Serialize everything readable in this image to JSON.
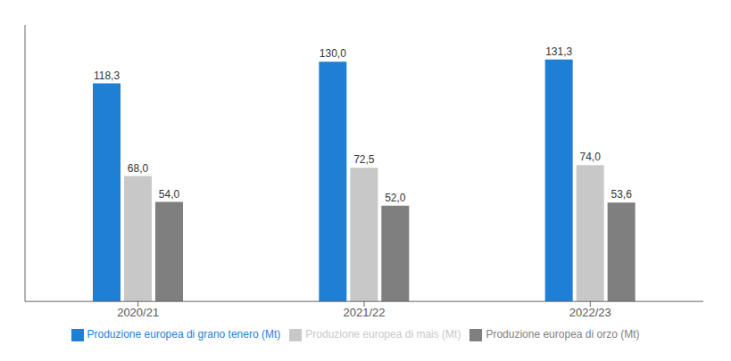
{
  "chart_data": {
    "type": "bar",
    "categories": [
      "2020/21",
      "2021/22",
      "2022/23"
    ],
    "series": [
      {
        "name": "Produzione europea di grano tenero (Mt)",
        "color": "#1f7fd4",
        "values": [
          118.3,
          130.0,
          131.3
        ],
        "value_labels": [
          "118,3",
          "130,0",
          "131,3"
        ]
      },
      {
        "name": "Produzione europea di mais (Mt)",
        "color": "#c8c8c8",
        "values": [
          68.0,
          72.5,
          74.0
        ],
        "value_labels": [
          "68,0",
          "72,5",
          "74,0"
        ]
      },
      {
        "name": "Produzione europea di orzo (Mt)",
        "color": "#7f7f7f",
        "values": [
          54.0,
          52.0,
          53.6
        ],
        "value_labels": [
          "54,0",
          "52,0",
          "53,6"
        ]
      }
    ],
    "ylim": [
      0,
      150
    ],
    "data_labels": true,
    "tick_labels": "x",
    "legend": "bottom"
  }
}
